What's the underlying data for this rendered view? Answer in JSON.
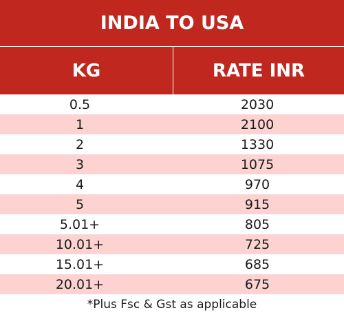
{
  "title": "INDIA TO USA",
  "columns": {
    "kg": "KG",
    "rate": "RATE INR"
  },
  "rows": [
    {
      "kg": "0.5",
      "rate": "2030"
    },
    {
      "kg": "1",
      "rate": "2100"
    },
    {
      "kg": "2",
      "rate": "1330"
    },
    {
      "kg": "3",
      "rate": "1075"
    },
    {
      "kg": "4",
      "rate": "970"
    },
    {
      "kg": "5",
      "rate": "915"
    },
    {
      "kg": "5.01+",
      "rate": "805"
    },
    {
      "kg": "10.01+",
      "rate": "725"
    },
    {
      "kg": "15.01+",
      "rate": "685"
    },
    {
      "kg": "20.01+",
      "rate": "675"
    }
  ],
  "footnote": "*Plus Fsc & Gst as applicable",
  "colors": {
    "header_bg": "#c0271f",
    "alt_row_bg": "#fcd3d1",
    "row_bg": "#ffffff"
  }
}
